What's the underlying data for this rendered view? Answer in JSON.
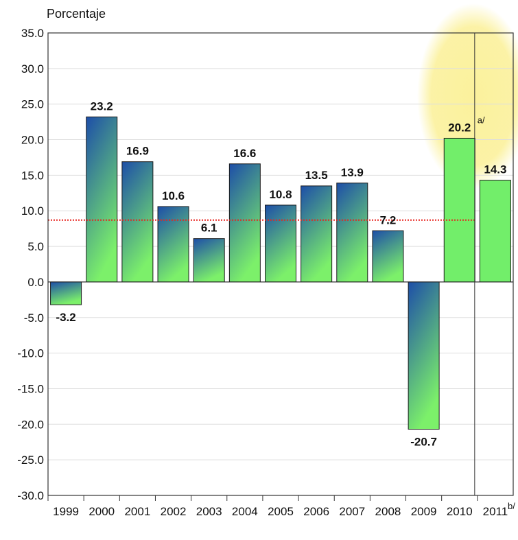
{
  "chart_data": {
    "type": "bar",
    "ylabel": "Porcentaje",
    "ylim": [
      -30,
      35
    ],
    "ytick_step": 5,
    "grid": true,
    "categories": [
      "1999",
      "2000",
      "2001",
      "2002",
      "2003",
      "2004",
      "2005",
      "2006",
      "2007",
      "2008",
      "2009",
      "2010",
      "2011"
    ],
    "values": [
      -3.2,
      23.2,
      16.9,
      10.6,
      6.1,
      16.6,
      10.8,
      13.5,
      13.9,
      7.2,
      -20.7,
      20.2,
      14.3
    ],
    "value_labels": [
      "-3.2",
      "23.2",
      "16.9",
      "10.6",
      "6.1",
      "16.6",
      "10.8",
      "13.5",
      "13.9",
      "7.2",
      "-20.7",
      "20.2",
      "14.3"
    ],
    "projected_categories": [
      "2010",
      "2011"
    ],
    "reference_line": {
      "value": 8.7,
      "color": "#e8231f",
      "style": "dotted"
    },
    "annotations": {
      "note_2010": "a/",
      "note_2011": "b/"
    },
    "highlight": {
      "color": "#fbf19c",
      "categories": [
        "2010",
        "2011"
      ]
    },
    "colors": {
      "bar_top": "#1d4ea8",
      "bar_bottom": "#7cf06a",
      "projected_bar": "#72ee6a",
      "gridline": "#dddddd",
      "frame": "#333333"
    }
  }
}
